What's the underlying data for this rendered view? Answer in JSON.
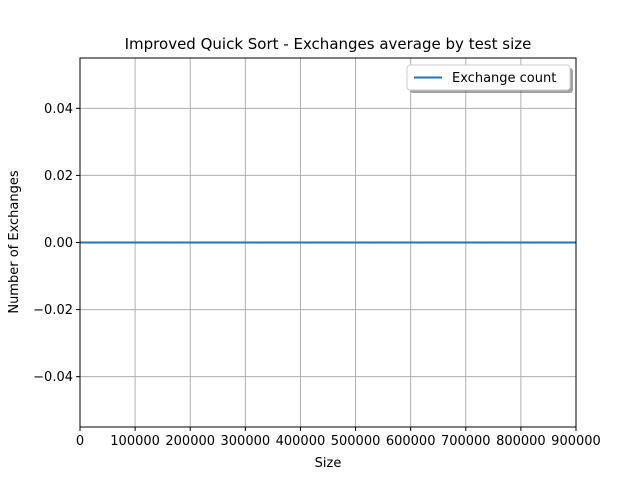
{
  "chart_data": {
    "type": "line",
    "title": "Improved Quick Sort - Exchanges average by test size",
    "xlabel": "Size",
    "ylabel": "Number of Exchanges",
    "xlim": [
      0,
      900000
    ],
    "ylim": [
      -0.055,
      0.055
    ],
    "x_ticks": [
      0,
      100000,
      200000,
      300000,
      400000,
      500000,
      600000,
      700000,
      800000,
      900000
    ],
    "x_tick_labels": [
      "0",
      "100000",
      "200000",
      "300000",
      "400000",
      "500000",
      "600000",
      "700000",
      "800000",
      "900000"
    ],
    "y_ticks": [
      -0.04,
      -0.02,
      0.0,
      0.02,
      0.04
    ],
    "y_tick_labels": [
      "−0.04",
      "−0.02",
      "0.00",
      "0.02",
      "0.04"
    ],
    "grid": true,
    "legend_position": "top-right",
    "series": [
      {
        "name": "Exchange count",
        "color": "#1f77b4",
        "x": [
          0,
          900000
        ],
        "y": [
          0,
          0
        ]
      }
    ]
  }
}
